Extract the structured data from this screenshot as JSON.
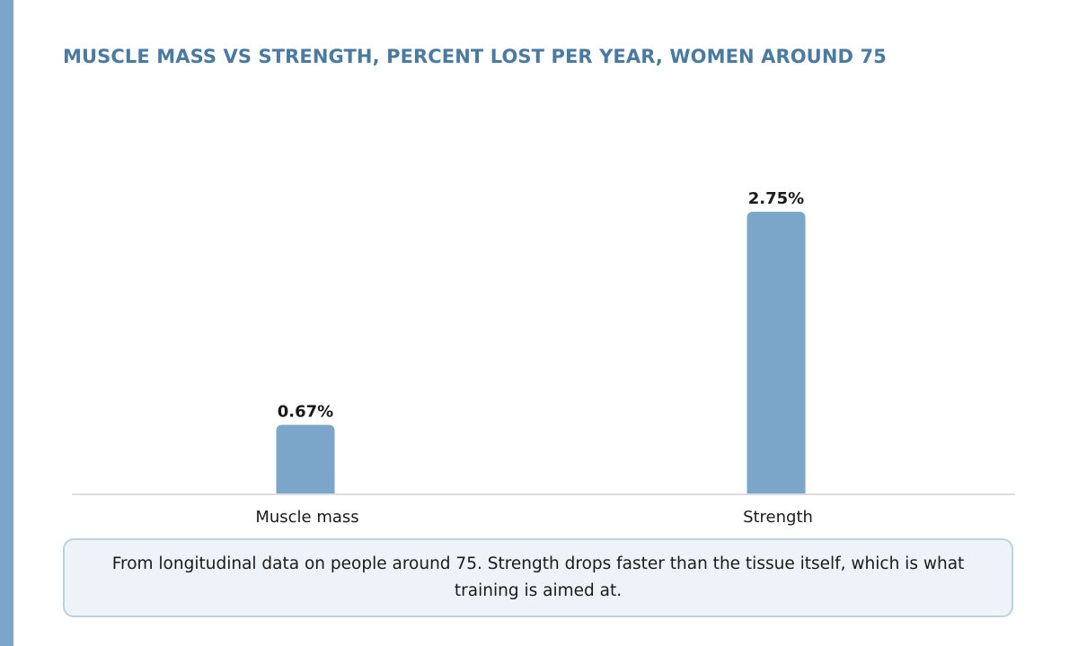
{
  "colors": {
    "accent": "#7ba6c9",
    "bar": "#7ba6c9",
    "title": "#4a7aa0",
    "text": "#1a1a1a",
    "baseline": "#dddddd",
    "note_bg": "#edf3f8",
    "note_border": "#bcd2e3"
  },
  "chart_data": {
    "type": "bar",
    "title": "MUSCLE MASS VS STRENGTH, PERCENT LOST PER YEAR, WOMEN AROUND 75",
    "xlabel": "",
    "ylabel": "",
    "categories": [
      "Muscle mass",
      "Strength"
    ],
    "values": [
      0.67,
      2.75
    ],
    "value_labels": [
      "0.67%",
      "2.75%"
    ],
    "ylim": [
      0,
      2.75
    ],
    "grid": false,
    "legend": "none"
  },
  "note": {
    "text": "From longitudinal data on people around 75. Strength drops faster than the tissue itself, which is what training is aimed at."
  }
}
